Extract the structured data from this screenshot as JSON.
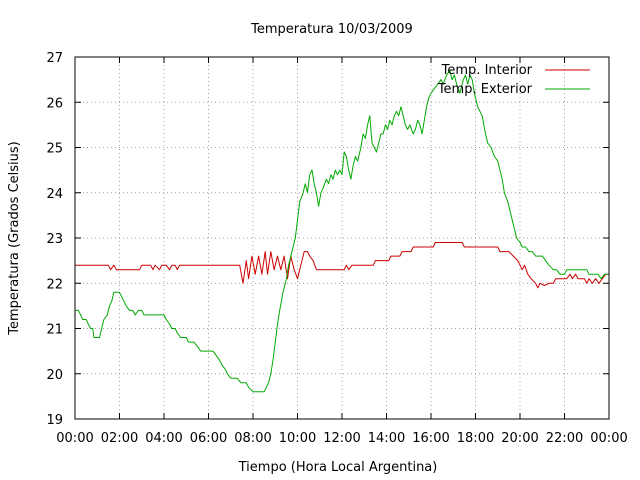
{
  "chart_data": {
    "type": "line",
    "title": "Temperatura 10/03/2009",
    "xlabel": "Tiempo (Hora Local Argentina)",
    "ylabel": "Temperatura (Grados Celsius)",
    "xlim": [
      0,
      24
    ],
    "ylim": [
      19,
      27
    ],
    "grid": true,
    "legend_position": "top-right",
    "x_ticks": [
      0,
      2,
      4,
      6,
      8,
      10,
      12,
      14,
      16,
      18,
      20,
      22,
      24
    ],
    "x_tick_labels": [
      "00:00",
      "02:00",
      "04:00",
      "06:00",
      "08:00",
      "10:00",
      "12:00",
      "14:00",
      "16:00",
      "18:00",
      "20:00",
      "22:00",
      "00:00"
    ],
    "y_ticks": [
      19,
      20,
      21,
      22,
      23,
      24,
      25,
      26,
      27
    ],
    "y_tick_labels": [
      "19",
      "20",
      "21",
      "22",
      "23",
      "24",
      "25",
      "26",
      "27"
    ],
    "series": [
      {
        "name": "Temp. Interior",
        "color": "#cc0000",
        "points": [
          [
            0.0,
            22.4
          ],
          [
            1.5,
            22.4
          ],
          [
            1.6,
            22.3
          ],
          [
            1.75,
            22.4
          ],
          [
            1.85,
            22.3
          ],
          [
            2.9,
            22.3
          ],
          [
            3.0,
            22.4
          ],
          [
            3.4,
            22.4
          ],
          [
            3.5,
            22.3
          ],
          [
            3.6,
            22.4
          ],
          [
            3.8,
            22.3
          ],
          [
            3.9,
            22.4
          ],
          [
            4.1,
            22.4
          ],
          [
            4.25,
            22.3
          ],
          [
            4.35,
            22.4
          ],
          [
            4.5,
            22.4
          ],
          [
            4.6,
            22.3
          ],
          [
            4.7,
            22.4
          ],
          [
            7.4,
            22.4
          ],
          [
            7.55,
            22.0
          ],
          [
            7.7,
            22.5
          ],
          [
            7.8,
            22.1
          ],
          [
            7.95,
            22.6
          ],
          [
            8.1,
            22.2
          ],
          [
            8.25,
            22.6
          ],
          [
            8.4,
            22.2
          ],
          [
            8.55,
            22.7
          ],
          [
            8.65,
            22.2
          ],
          [
            8.8,
            22.7
          ],
          [
            8.95,
            22.3
          ],
          [
            9.1,
            22.6
          ],
          [
            9.25,
            22.3
          ],
          [
            9.4,
            22.6
          ],
          [
            9.55,
            22.1
          ],
          [
            9.7,
            22.6
          ],
          [
            9.85,
            22.3
          ],
          [
            10.0,
            22.1
          ],
          [
            10.15,
            22.4
          ],
          [
            10.3,
            22.7
          ],
          [
            10.45,
            22.7
          ],
          [
            10.55,
            22.6
          ],
          [
            10.7,
            22.5
          ],
          [
            10.85,
            22.3
          ],
          [
            12.1,
            22.3
          ],
          [
            12.2,
            22.4
          ],
          [
            12.3,
            22.3
          ],
          [
            12.45,
            22.4
          ],
          [
            13.4,
            22.4
          ],
          [
            13.5,
            22.5
          ],
          [
            14.1,
            22.5
          ],
          [
            14.2,
            22.6
          ],
          [
            14.6,
            22.6
          ],
          [
            14.7,
            22.7
          ],
          [
            15.1,
            22.7
          ],
          [
            15.2,
            22.8
          ],
          [
            16.1,
            22.8
          ],
          [
            16.2,
            22.9
          ],
          [
            17.4,
            22.9
          ],
          [
            17.5,
            22.8
          ],
          [
            19.0,
            22.8
          ],
          [
            19.1,
            22.7
          ],
          [
            19.5,
            22.7
          ],
          [
            19.7,
            22.6
          ],
          [
            19.9,
            22.5
          ],
          [
            20.0,
            22.4
          ],
          [
            20.1,
            22.3
          ],
          [
            20.2,
            22.4
          ],
          [
            20.35,
            22.2
          ],
          [
            20.5,
            22.1
          ],
          [
            20.7,
            22.0
          ],
          [
            20.8,
            21.9
          ],
          [
            20.9,
            22.0
          ],
          [
            21.1,
            21.95
          ],
          [
            21.3,
            22.0
          ],
          [
            21.5,
            22.0
          ],
          [
            21.6,
            22.1
          ],
          [
            22.1,
            22.1
          ],
          [
            22.25,
            22.2
          ],
          [
            22.35,
            22.1
          ],
          [
            22.5,
            22.2
          ],
          [
            22.6,
            22.1
          ],
          [
            22.9,
            22.1
          ],
          [
            23.0,
            22.0
          ],
          [
            23.1,
            22.1
          ],
          [
            23.25,
            22.0
          ],
          [
            23.4,
            22.1
          ],
          [
            23.55,
            22.0
          ],
          [
            23.7,
            22.1
          ],
          [
            23.85,
            22.2
          ],
          [
            24.0,
            22.2
          ]
        ]
      },
      {
        "name": "Temp. Exterior",
        "color": "#00aa00",
        "points": [
          [
            0.0,
            21.4
          ],
          [
            0.15,
            21.4
          ],
          [
            0.25,
            21.3
          ],
          [
            0.35,
            21.2
          ],
          [
            0.5,
            21.2
          ],
          [
            0.6,
            21.1
          ],
          [
            0.7,
            21.0
          ],
          [
            0.8,
            21.0
          ],
          [
            0.85,
            20.8
          ],
          [
            1.0,
            20.8
          ],
          [
            1.1,
            20.8
          ],
          [
            1.2,
            21.0
          ],
          [
            1.3,
            21.2
          ],
          [
            1.45,
            21.3
          ],
          [
            1.55,
            21.5
          ],
          [
            1.65,
            21.6
          ],
          [
            1.75,
            21.8
          ],
          [
            1.85,
            21.8
          ],
          [
            2.0,
            21.8
          ],
          [
            2.1,
            21.7
          ],
          [
            2.2,
            21.6
          ],
          [
            2.3,
            21.5
          ],
          [
            2.45,
            21.4
          ],
          [
            2.6,
            21.4
          ],
          [
            2.7,
            21.3
          ],
          [
            2.85,
            21.4
          ],
          [
            3.0,
            21.4
          ],
          [
            3.1,
            21.3
          ],
          [
            3.3,
            21.3
          ],
          [
            4.0,
            21.3
          ],
          [
            4.1,
            21.2
          ],
          [
            4.25,
            21.1
          ],
          [
            4.35,
            21.0
          ],
          [
            4.5,
            21.0
          ],
          [
            4.6,
            20.9
          ],
          [
            4.75,
            20.8
          ],
          [
            5.0,
            20.8
          ],
          [
            5.1,
            20.7
          ],
          [
            5.35,
            20.7
          ],
          [
            5.5,
            20.6
          ],
          [
            5.65,
            20.5
          ],
          [
            6.2,
            20.5
          ],
          [
            6.35,
            20.4
          ],
          [
            6.5,
            20.3
          ],
          [
            6.6,
            20.2
          ],
          [
            6.75,
            20.1
          ],
          [
            6.85,
            20.0
          ],
          [
            7.0,
            19.9
          ],
          [
            7.3,
            19.9
          ],
          [
            7.45,
            19.8
          ],
          [
            7.7,
            19.8
          ],
          [
            7.8,
            19.7
          ],
          [
            8.0,
            19.6
          ],
          [
            8.5,
            19.6
          ],
          [
            8.6,
            19.7
          ],
          [
            8.7,
            19.8
          ],
          [
            8.8,
            20.0
          ],
          [
            8.9,
            20.3
          ],
          [
            9.0,
            20.7
          ],
          [
            9.1,
            21.1
          ],
          [
            9.2,
            21.4
          ],
          [
            9.35,
            21.8
          ],
          [
            9.5,
            22.1
          ],
          [
            9.6,
            22.4
          ],
          [
            9.75,
            22.7
          ],
          [
            9.9,
            23.0
          ],
          [
            10.0,
            23.4
          ],
          [
            10.1,
            23.8
          ],
          [
            10.25,
            24.0
          ],
          [
            10.35,
            24.2
          ],
          [
            10.45,
            24.0
          ],
          [
            10.55,
            24.4
          ],
          [
            10.65,
            24.5
          ],
          [
            10.75,
            24.2
          ],
          [
            10.85,
            24.0
          ],
          [
            10.95,
            23.7
          ],
          [
            11.05,
            24.0
          ],
          [
            11.15,
            24.1
          ],
          [
            11.3,
            24.3
          ],
          [
            11.4,
            24.2
          ],
          [
            11.5,
            24.4
          ],
          [
            11.6,
            24.3
          ],
          [
            11.7,
            24.5
          ],
          [
            11.8,
            24.4
          ],
          [
            11.9,
            24.5
          ],
          [
            12.0,
            24.4
          ],
          [
            12.1,
            24.9
          ],
          [
            12.2,
            24.8
          ],
          [
            12.3,
            24.5
          ],
          [
            12.4,
            24.3
          ],
          [
            12.5,
            24.6
          ],
          [
            12.6,
            24.8
          ],
          [
            12.7,
            24.7
          ],
          [
            12.85,
            25.0
          ],
          [
            12.95,
            25.3
          ],
          [
            13.05,
            25.2
          ],
          [
            13.15,
            25.5
          ],
          [
            13.25,
            25.7
          ],
          [
            13.35,
            25.1
          ],
          [
            13.45,
            25.0
          ],
          [
            13.55,
            24.9
          ],
          [
            13.65,
            25.1
          ],
          [
            13.75,
            25.3
          ],
          [
            13.85,
            25.3
          ],
          [
            13.95,
            25.5
          ],
          [
            14.05,
            25.4
          ],
          [
            14.15,
            25.6
          ],
          [
            14.25,
            25.5
          ],
          [
            14.35,
            25.7
          ],
          [
            14.45,
            25.8
          ],
          [
            14.55,
            25.7
          ],
          [
            14.65,
            25.9
          ],
          [
            14.75,
            25.7
          ],
          [
            14.85,
            25.5
          ],
          [
            14.95,
            25.4
          ],
          [
            15.05,
            25.5
          ],
          [
            15.2,
            25.3
          ],
          [
            15.3,
            25.4
          ],
          [
            15.4,
            25.6
          ],
          [
            15.5,
            25.5
          ],
          [
            15.6,
            25.3
          ],
          [
            15.7,
            25.6
          ],
          [
            15.8,
            25.9
          ],
          [
            15.9,
            26.1
          ],
          [
            16.0,
            26.2
          ],
          [
            16.15,
            26.3
          ],
          [
            16.3,
            26.4
          ],
          [
            16.45,
            26.5
          ],
          [
            16.55,
            26.4
          ],
          [
            16.7,
            26.6
          ],
          [
            16.85,
            26.7
          ],
          [
            16.95,
            26.5
          ],
          [
            17.05,
            26.6
          ],
          [
            17.15,
            26.4
          ],
          [
            17.3,
            26.2
          ],
          [
            17.45,
            26.5
          ],
          [
            17.55,
            26.6
          ],
          [
            17.65,
            26.4
          ],
          [
            17.75,
            26.6
          ],
          [
            17.85,
            26.5
          ],
          [
            17.95,
            26.2
          ],
          [
            18.1,
            25.9
          ],
          [
            18.2,
            25.8
          ],
          [
            18.3,
            25.7
          ],
          [
            18.45,
            25.3
          ],
          [
            18.55,
            25.1
          ],
          [
            18.7,
            25.0
          ],
          [
            18.85,
            24.8
          ],
          [
            19.0,
            24.7
          ],
          [
            19.1,
            24.5
          ],
          [
            19.2,
            24.3
          ],
          [
            19.3,
            24.0
          ],
          [
            19.45,
            23.8
          ],
          [
            19.55,
            23.6
          ],
          [
            19.65,
            23.4
          ],
          [
            19.75,
            23.2
          ],
          [
            19.85,
            23.0
          ],
          [
            20.0,
            22.9
          ],
          [
            20.1,
            22.8
          ],
          [
            20.25,
            22.8
          ],
          [
            20.4,
            22.7
          ],
          [
            20.55,
            22.7
          ],
          [
            20.7,
            22.6
          ],
          [
            21.0,
            22.6
          ],
          [
            21.15,
            22.5
          ],
          [
            21.3,
            22.4
          ],
          [
            21.5,
            22.3
          ],
          [
            21.65,
            22.3
          ],
          [
            21.8,
            22.2
          ],
          [
            22.0,
            22.2
          ],
          [
            22.1,
            22.3
          ],
          [
            23.0,
            22.3
          ],
          [
            23.1,
            22.2
          ],
          [
            23.3,
            22.2
          ],
          [
            23.5,
            22.2
          ],
          [
            23.65,
            22.1
          ],
          [
            23.8,
            22.2
          ],
          [
            24.0,
            22.2
          ]
        ]
      }
    ]
  }
}
